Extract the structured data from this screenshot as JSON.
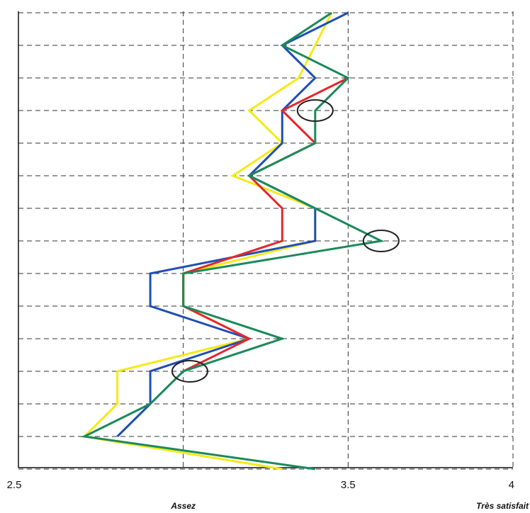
{
  "chart_data": {
    "type": "line",
    "orientation": "horizontal-values-vertical-categories",
    "xlim": [
      2.5,
      4
    ],
    "x_ticks": [
      {
        "value": 2.5,
        "label": "2.5"
      },
      {
        "value": 3.5,
        "label": "3.5"
      },
      {
        "value": 4,
        "label": "4"
      }
    ],
    "x_category_labels": [
      {
        "value": 3,
        "label": "Assez"
      },
      {
        "value": 4,
        "label": "Très satisfait"
      }
    ],
    "grid": {
      "vertical_dashed_at": [
        3,
        3.5,
        4
      ],
      "horizontal_dashed": true
    },
    "row_count": 15,
    "series": [
      {
        "color": "#f5ea14",
        "values": [
          3.45,
          3.4,
          3.35,
          3.2,
          3.3,
          3.15,
          3.4,
          3.4,
          3.0,
          3.0,
          3.2,
          2.8,
          2.8,
          2.7,
          3.3
        ]
      },
      {
        "color": "#1f4fb5",
        "values": [
          3.5,
          3.3,
          3.4,
          3.3,
          3.3,
          3.2,
          3.4,
          3.4,
          2.9,
          2.9,
          3.2,
          2.9,
          2.9,
          2.8,
          null
        ]
      },
      {
        "color": "#e8262c",
        "values": [
          null,
          null,
          3.5,
          3.3,
          3.4,
          3.2,
          3.3,
          3.3,
          3.0,
          3.0,
          3.2,
          3.0,
          null,
          null,
          null
        ]
      },
      {
        "color": "#1a8a5a",
        "values": [
          3.45,
          3.3,
          3.5,
          3.4,
          3.4,
          3.2,
          3.4,
          3.6,
          3.0,
          3.0,
          3.3,
          3.0,
          2.9,
          2.7,
          3.4
        ]
      }
    ],
    "annotations": [
      {
        "shape": "circle",
        "x": 3.4,
        "row": 3
      },
      {
        "shape": "circle",
        "x": 3.6,
        "row": 7
      },
      {
        "shape": "circle",
        "x": 3.02,
        "row": 11
      }
    ]
  }
}
